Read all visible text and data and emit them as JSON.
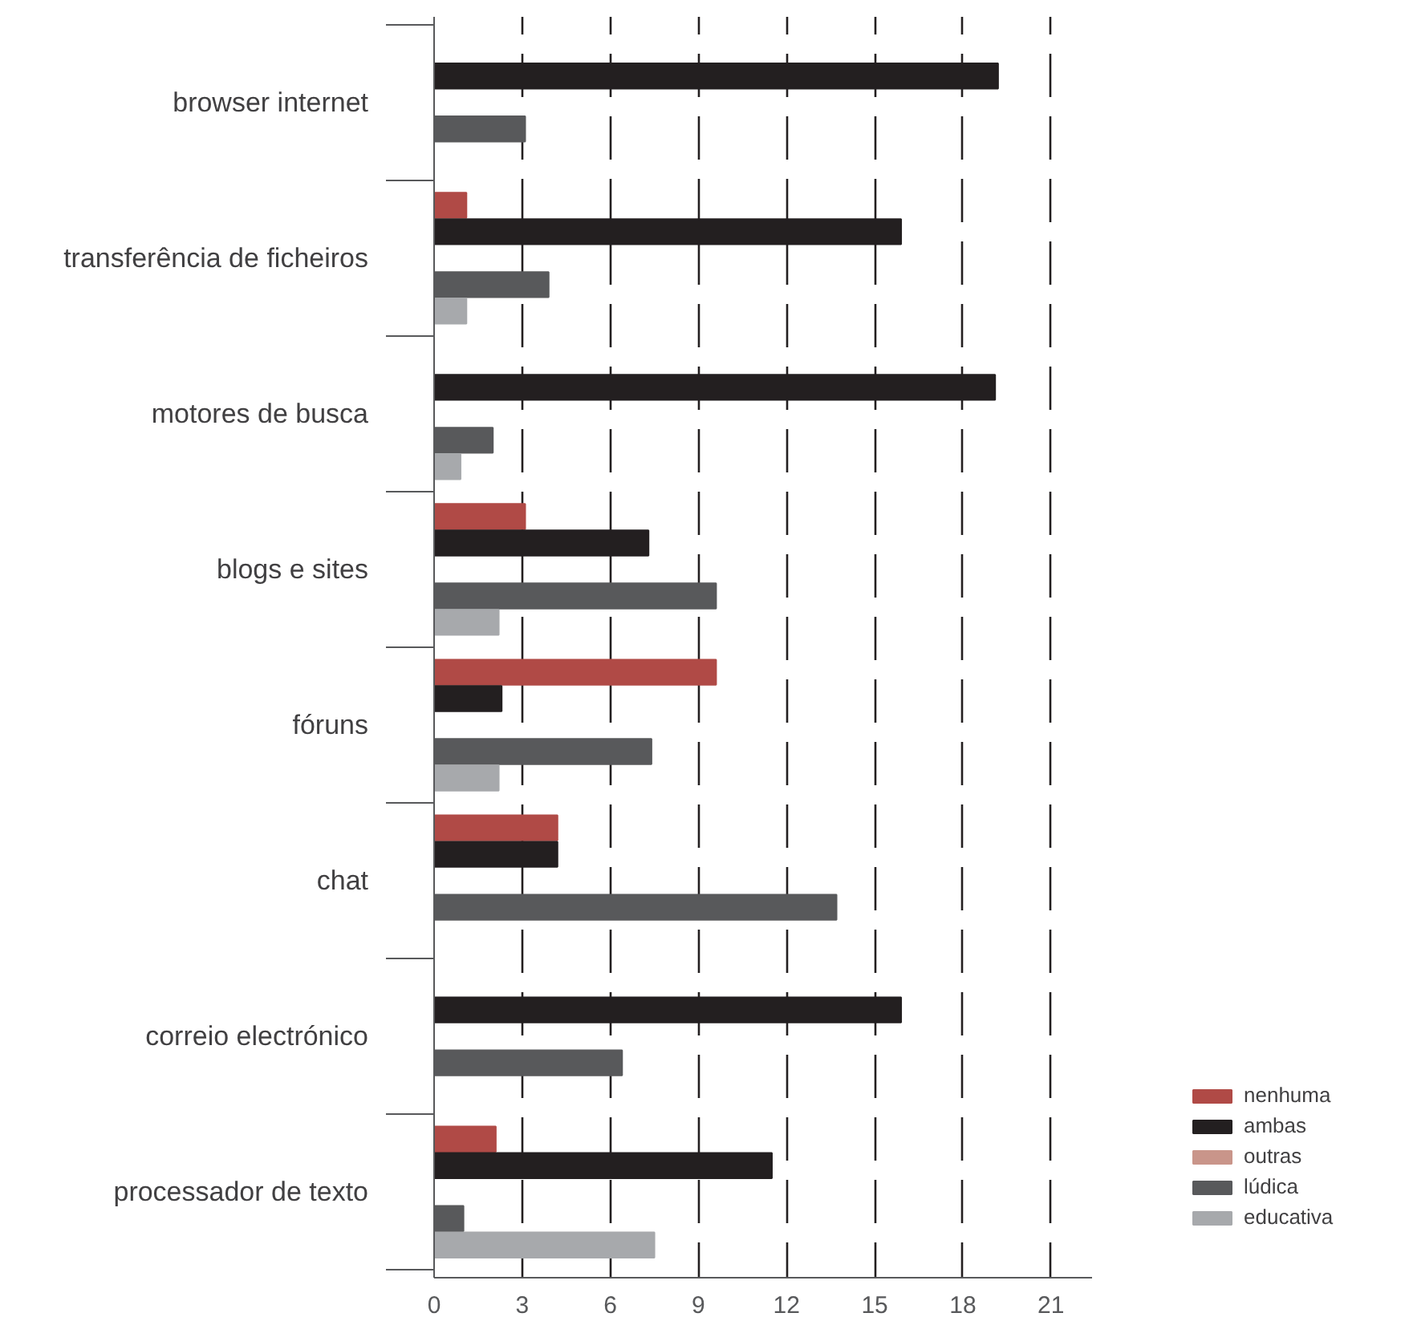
{
  "chart_data": {
    "type": "bar",
    "orientation": "horizontal",
    "categories": [
      "browser internet",
      "transferência de ficheiros",
      "motores de busca",
      "blogs e sites",
      "fóruns",
      "chat",
      "correio electrónico",
      "processador de texto"
    ],
    "series": [
      {
        "name": "nenhuma",
        "color": "#b04a46",
        "values": [
          null,
          1.1,
          null,
          3.1,
          9.6,
          4.2,
          null,
          2.1
        ]
      },
      {
        "name": "ambas",
        "color": "#231f20",
        "values": [
          19.2,
          15.9,
          19.1,
          7.3,
          2.3,
          4.2,
          15.9,
          11.5
        ]
      },
      {
        "name": "outras",
        "color": "#c9958a",
        "values": [
          null,
          null,
          null,
          null,
          null,
          null,
          null,
          null
        ]
      },
      {
        "name": "lúdica",
        "color": "#58595b",
        "values": [
          3.1,
          3.9,
          2.0,
          9.6,
          7.4,
          13.7,
          6.4,
          1.0
        ]
      },
      {
        "name": "educativa",
        "color": "#a7a9ac",
        "values": [
          null,
          1.1,
          0.9,
          2.2,
          2.2,
          null,
          null,
          7.5
        ]
      }
    ],
    "xlim": [
      0,
      22.4
    ],
    "xticks": [
      0,
      3,
      6,
      9,
      12,
      15,
      18,
      21
    ],
    "grid": "x",
    "legend": "bottom right"
  }
}
